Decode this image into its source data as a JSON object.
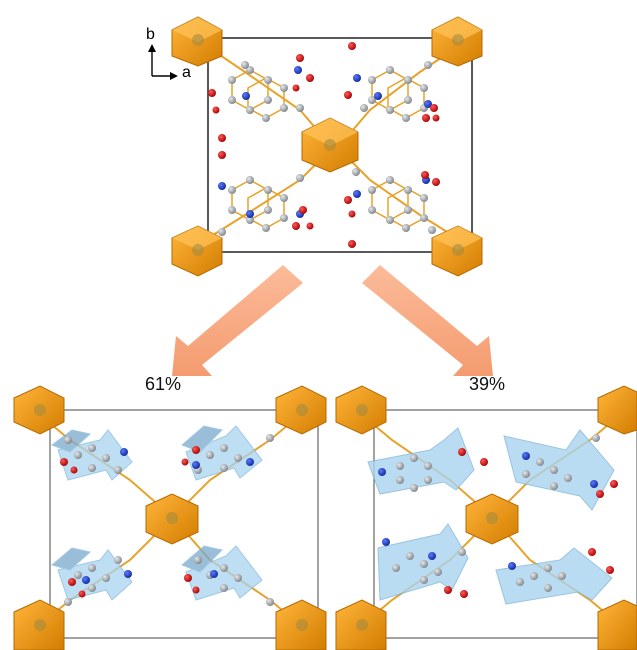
{
  "axes": {
    "b_label": "b",
    "a_label": "a"
  },
  "splits": [
    {
      "id": "left",
      "percent_label": "61%",
      "value": 61
    },
    {
      "id": "right",
      "percent_label": "39%",
      "value": 39
    }
  ],
  "colors": {
    "octahedron": "#f39c12",
    "octahedron_dark": "#c97400",
    "carbon": "#9aa0a6",
    "nitrogen": "#1f3fbf",
    "oxygen": "#d10f0f",
    "bond": "#e8a22a",
    "arrow": "#f6a57a",
    "ring_overlay": "#a9d4f0",
    "cell": "#222222"
  }
}
